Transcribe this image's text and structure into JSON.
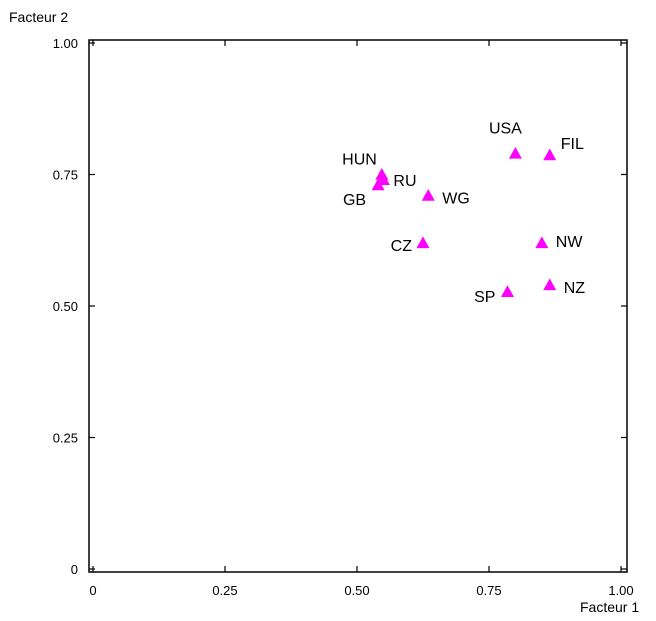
{
  "chart_data": {
    "type": "scatter",
    "xlabel": "Facteur 1",
    "ylabel": "Facteur 2",
    "xlim": [
      0,
      1.0
    ],
    "ylim": [
      0,
      1.0
    ],
    "grid": false,
    "x_ticks": [
      "0",
      "0.25",
      "0.50",
      "0.75",
      "1.00"
    ],
    "y_ticks": [
      "0",
      "0.25",
      "0.50",
      "0.75",
      "1.00"
    ],
    "marker": "triangle",
    "marker_color": "#ff00ff",
    "points": [
      {
        "label": "USA",
        "x": 0.8,
        "y": 0.79
      },
      {
        "label": "FIL",
        "x": 0.865,
        "y": 0.787
      },
      {
        "label": "HUN",
        "x": 0.547,
        "y": 0.75
      },
      {
        "label": "RU",
        "x": 0.55,
        "y": 0.74
      },
      {
        "label": "GB",
        "x": 0.54,
        "y": 0.73
      },
      {
        "label": "WG",
        "x": 0.635,
        "y": 0.71
      },
      {
        "label": "CZ",
        "x": 0.625,
        "y": 0.62
      },
      {
        "label": "NW",
        "x": 0.85,
        "y": 0.62
      },
      {
        "label": "SP",
        "x": 0.785,
        "y": 0.527
      },
      {
        "label": "NZ",
        "x": 0.865,
        "y": 0.54
      }
    ]
  }
}
